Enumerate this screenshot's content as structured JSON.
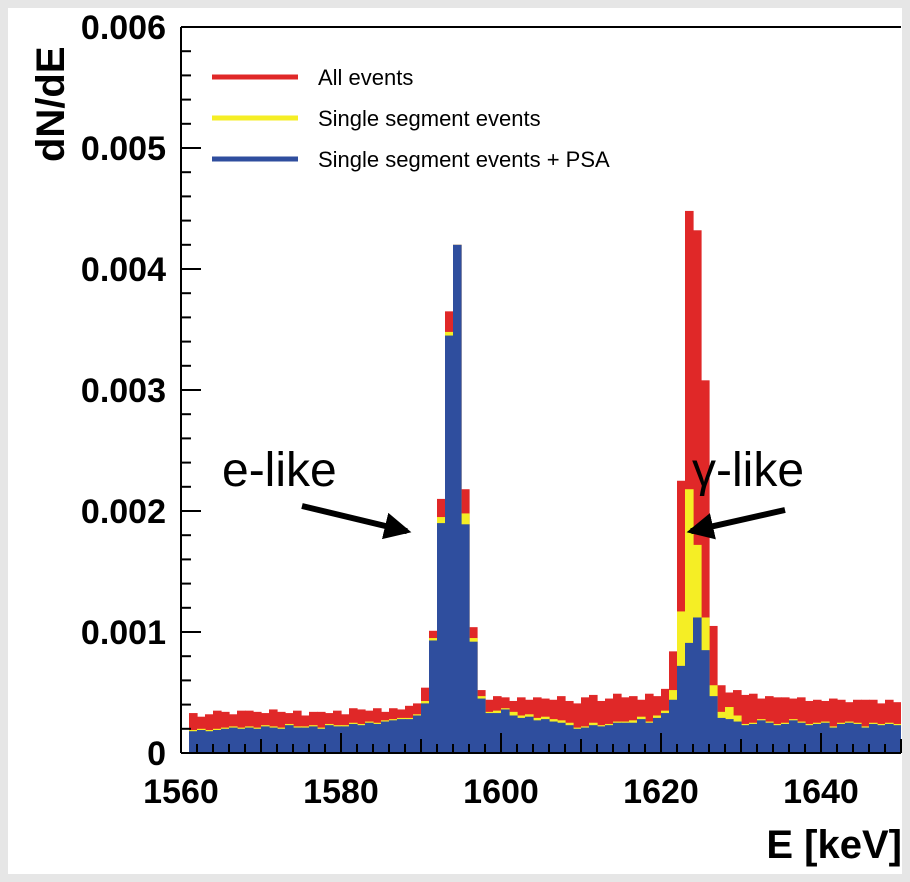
{
  "chart_data": {
    "type": "bar",
    "title": "",
    "xlabel": "E [keV]",
    "ylabel": "dN/dE",
    "xlim": [
      1560,
      1650
    ],
    "ylim": [
      0,
      0.006
    ],
    "bin_start": 1561,
    "bin_width": 1,
    "x_ticks": [
      {
        "value": 1560,
        "label": "1560"
      },
      {
        "value": 1580,
        "label": "1580"
      },
      {
        "value": 1600,
        "label": "1600"
      },
      {
        "value": 1620,
        "label": "1620"
      },
      {
        "value": 1640,
        "label": "1640"
      }
    ],
    "y_ticks": [
      {
        "value": 0,
        "label": "0"
      },
      {
        "value": 0.001,
        "label": "0.001"
      },
      {
        "value": 0.002,
        "label": "0.002"
      },
      {
        "value": 0.003,
        "label": "0.003"
      },
      {
        "value": 0.004,
        "label": "0.004"
      },
      {
        "value": 0.005,
        "label": "0.005"
      },
      {
        "value": 0.006,
        "label": "0.006"
      }
    ],
    "legend_position": "top-left",
    "grid": false,
    "series": [
      {
        "name": "All events",
        "color": "#e02828",
        "values": [
          0.00033,
          0.0003,
          0.00032,
          0.00035,
          0.00034,
          0.00032,
          0.00035,
          0.00035,
          0.00034,
          0.00033,
          0.00036,
          0.00034,
          0.00033,
          0.00035,
          0.00031,
          0.00034,
          0.00034,
          0.00033,
          0.00035,
          0.00032,
          0.00037,
          0.00036,
          0.00035,
          0.00037,
          0.00034,
          0.00037,
          0.00036,
          0.00039,
          0.00041,
          0.00054,
          0.00101,
          0.0021,
          0.00365,
          0.0042,
          0.00218,
          0.00104,
          0.00052,
          0.00044,
          0.00047,
          0.00046,
          0.00043,
          0.00046,
          0.00044,
          0.00046,
          0.00045,
          0.00044,
          0.00047,
          0.00043,
          0.00041,
          0.00046,
          0.00048,
          0.00043,
          0.00045,
          0.00049,
          0.00046,
          0.00047,
          0.00044,
          0.00049,
          0.00047,
          0.00053,
          0.00084,
          0.00225,
          0.00448,
          0.00432,
          0.00308,
          0.00105,
          0.00056,
          0.0005,
          0.00052,
          0.00048,
          0.00049,
          0.00045,
          0.00047,
          0.00046,
          0.00046,
          0.00045,
          0.00046,
          0.00043,
          0.00044,
          0.00043,
          0.00045,
          0.00044,
          0.00042,
          0.00044,
          0.00044,
          0.00044,
          0.00041,
          0.00044,
          0.00042,
          0.00043
        ]
      },
      {
        "name": "Single segment events",
        "color": "#f5ee25",
        "values": [
          0.00019,
          0.0002,
          0.00019,
          0.0002,
          0.00021,
          0.00022,
          0.00021,
          0.00022,
          0.00021,
          0.00023,
          0.00022,
          0.00021,
          0.00024,
          0.00022,
          0.00022,
          0.00023,
          0.00021,
          0.00024,
          0.00023,
          0.00023,
          0.00025,
          0.00024,
          0.00026,
          0.00025,
          0.00027,
          0.00028,
          0.00029,
          0.00029,
          0.00032,
          0.00043,
          0.00095,
          0.00195,
          0.00348,
          0.0042,
          0.00198,
          0.00095,
          0.00047,
          0.00034,
          0.00035,
          0.00037,
          0.00034,
          0.00031,
          0.00032,
          0.00029,
          0.0003,
          0.00028,
          0.00027,
          0.00025,
          0.00021,
          0.00022,
          0.00025,
          0.00023,
          0.00024,
          0.00026,
          0.00026,
          0.00027,
          0.0003,
          0.00026,
          0.00031,
          0.00035,
          0.00052,
          0.00117,
          0.00218,
          0.00172,
          0.00112,
          0.00056,
          0.00034,
          0.00038,
          0.00031,
          0.00024,
          0.00025,
          0.00028,
          0.00026,
          0.00024,
          0.00025,
          0.00028,
          0.00026,
          0.00024,
          0.00025,
          0.00026,
          0.00022,
          0.00025,
          0.00026,
          0.00025,
          0.00022,
          0.00025,
          0.00024,
          0.00025,
          0.00024,
          0.00023
        ]
      },
      {
        "name": "Single segment events + PSA",
        "color": "#2f4e9e",
        "values": [
          0.00018,
          0.00019,
          0.00018,
          0.00019,
          0.0002,
          0.00021,
          0.0002,
          0.00021,
          0.0002,
          0.00022,
          0.00021,
          0.0002,
          0.00023,
          0.00021,
          0.00021,
          0.00022,
          0.0002,
          0.00023,
          0.00022,
          0.00022,
          0.00024,
          0.00023,
          0.00025,
          0.00024,
          0.00026,
          0.00027,
          0.00028,
          0.00028,
          0.00031,
          0.00041,
          0.00093,
          0.0019,
          0.00345,
          0.0042,
          0.00189,
          0.00092,
          0.00045,
          0.00033,
          0.00033,
          0.00036,
          0.00031,
          0.00029,
          0.0003,
          0.00027,
          0.00028,
          0.00026,
          0.00025,
          0.00023,
          0.0002,
          0.00021,
          0.00023,
          0.00022,
          0.00023,
          0.00025,
          0.00025,
          0.00025,
          0.00028,
          0.00025,
          0.00029,
          0.00033,
          0.00044,
          0.00072,
          0.00091,
          0.00112,
          0.00085,
          0.00047,
          0.00029,
          0.00028,
          0.00026,
          0.00023,
          0.00024,
          0.00027,
          0.00025,
          0.00023,
          0.00024,
          0.00027,
          0.00025,
          0.00023,
          0.00024,
          0.00025,
          0.00021,
          0.00024,
          0.00025,
          0.00024,
          0.00021,
          0.00024,
          0.00023,
          0.00024,
          0.00023,
          0.00022
        ]
      }
    ],
    "annotations": [
      {
        "text": "e-like",
        "x": 1588.5,
        "y": 0.0018
      },
      {
        "text": "γ-like",
        "x": 1623.5,
        "y": 0.0018
      }
    ]
  }
}
